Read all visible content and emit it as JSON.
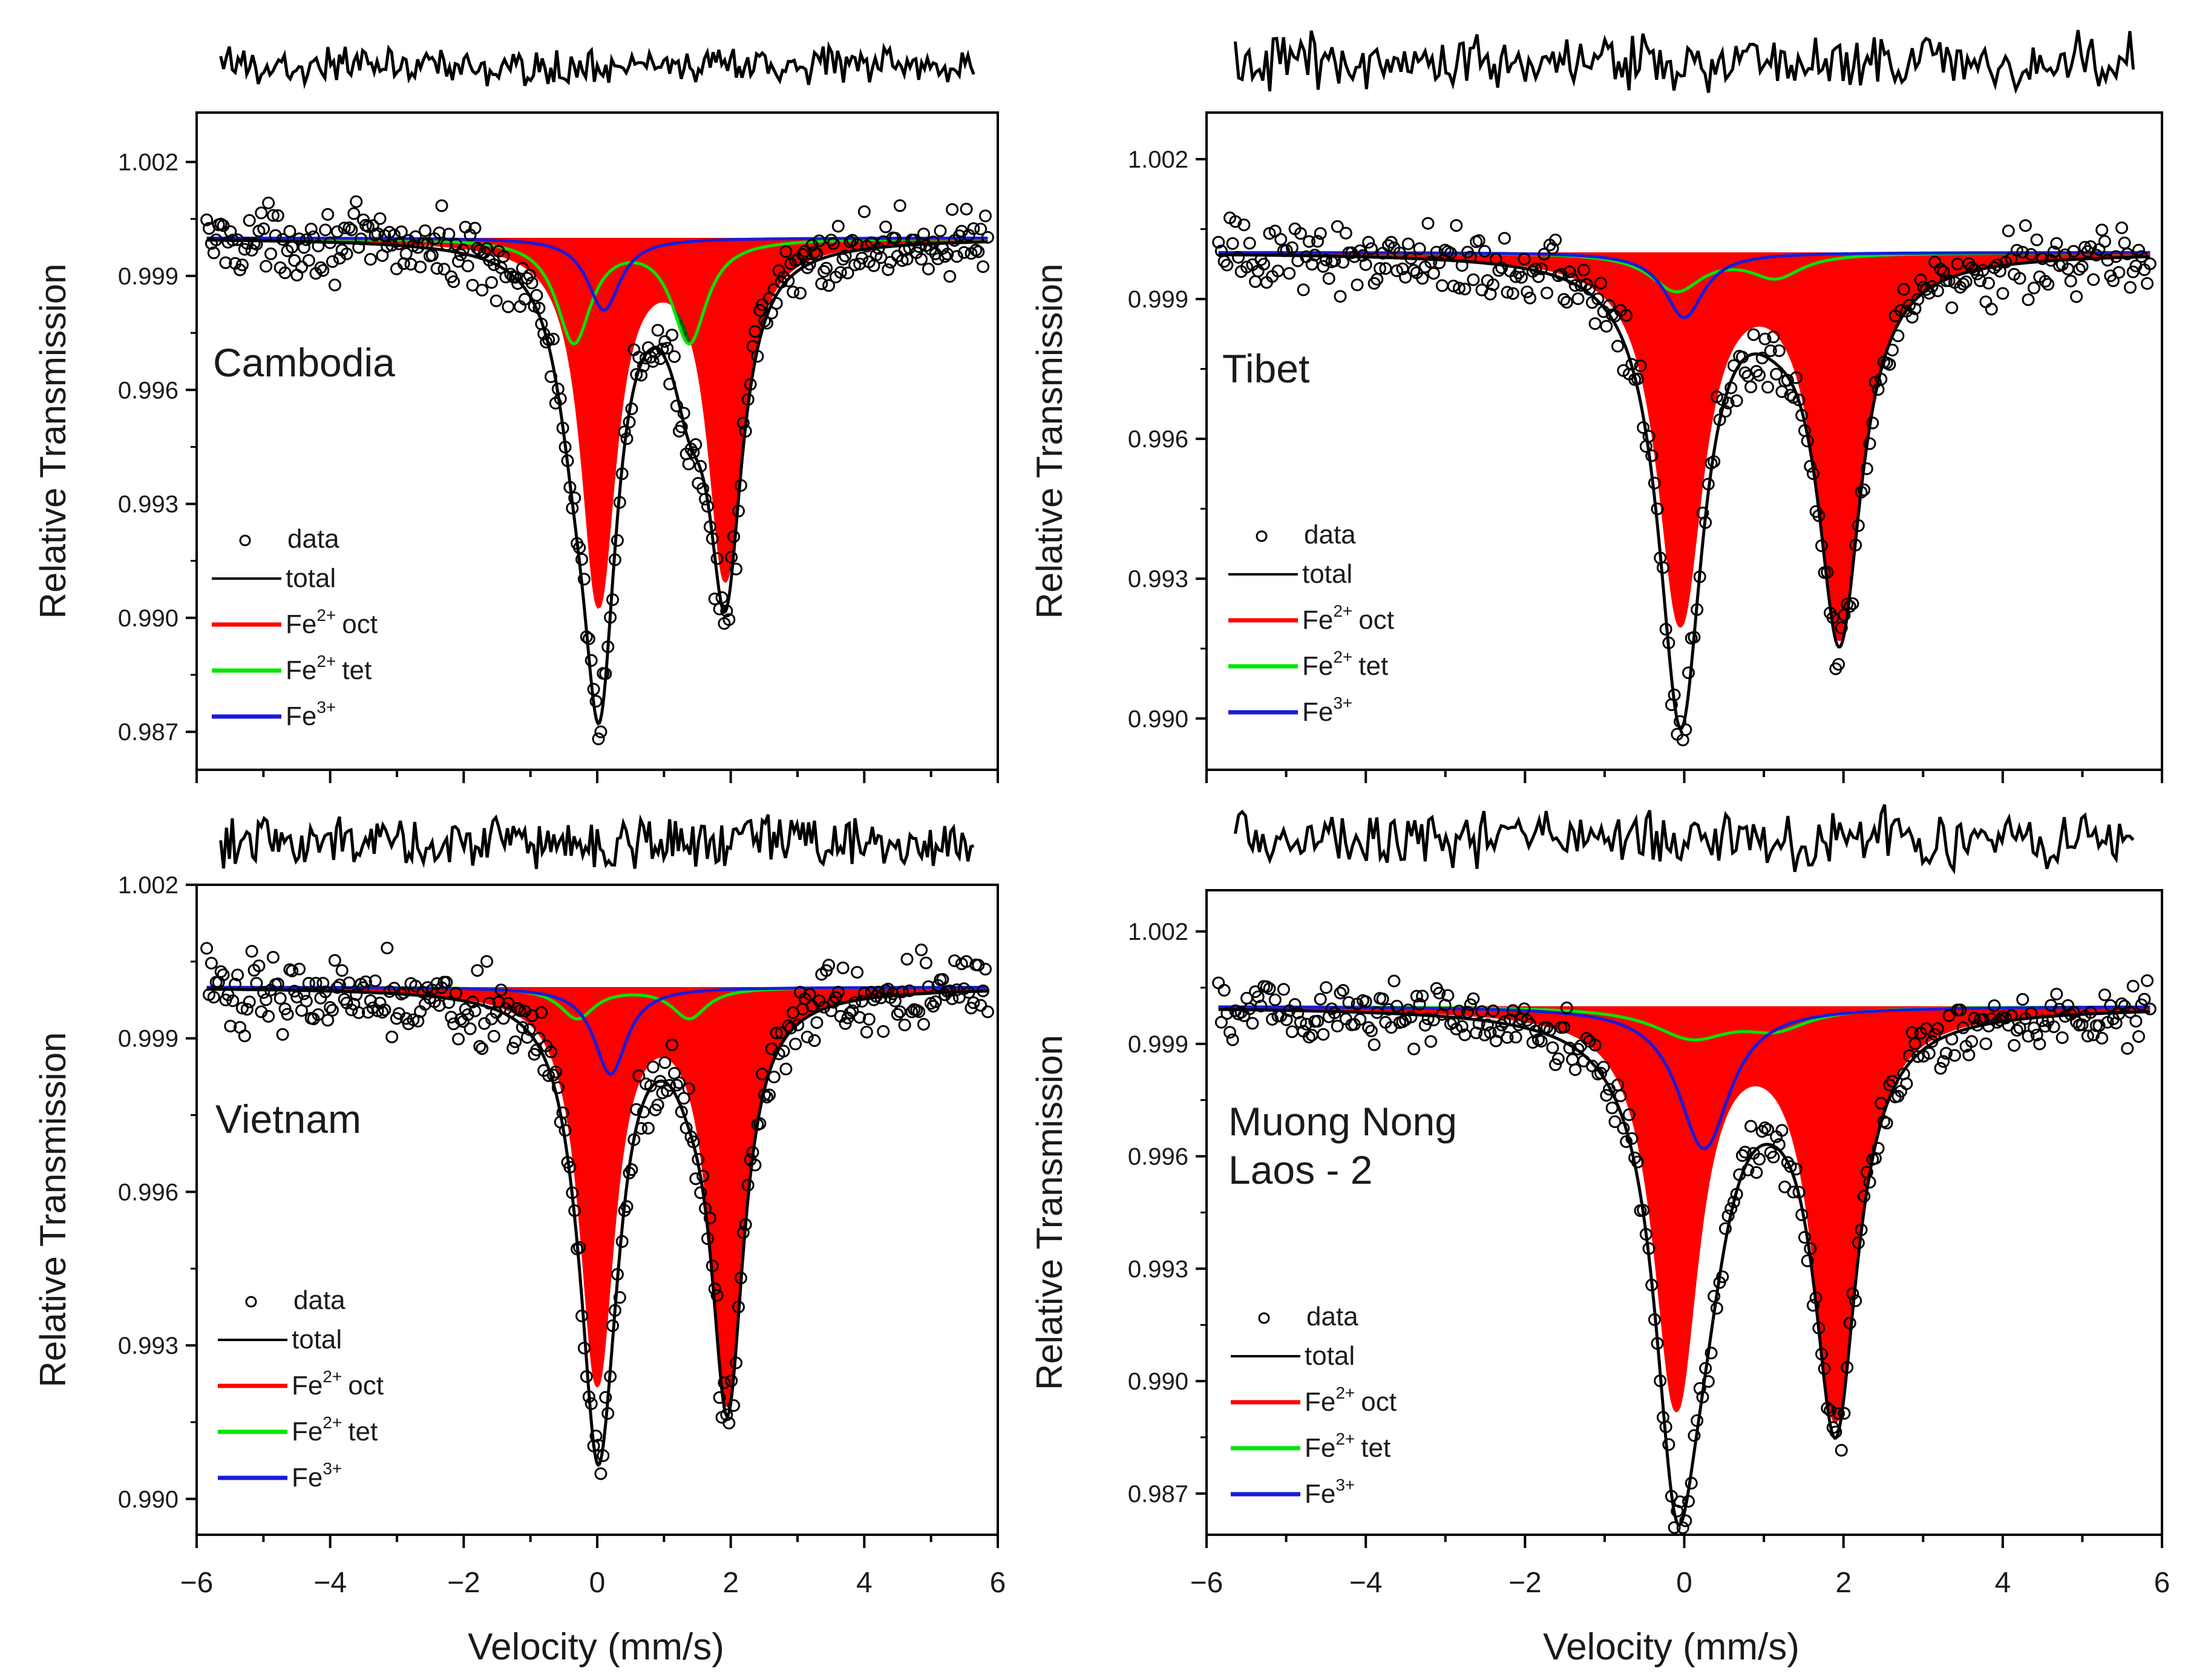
{
  "figure": {
    "xlabel": "Velocity (mm/s)",
    "ylabel": "Relative Transmission"
  },
  "legend": {
    "data": "data",
    "total": "total",
    "fe2_oct": {
      "base": "Fe",
      "sup": "2+",
      "suffix": "oct"
    },
    "fe2_tet": {
      "base": "Fe",
      "sup": "2+",
      "suffix": "tet"
    },
    "fe3": {
      "base": "Fe",
      "sup": "3+",
      "suffix": ""
    }
  },
  "colors": {
    "fe2_oct": "#ff0000",
    "fe2_tet": "#00e600",
    "fe3": "#1a1adb",
    "total": "#000000",
    "data": "#000000",
    "tet_hatch": "#1f5a1f",
    "fe3_hatch_fill": "#3a2a9a",
    "mix_fill": "#5a1a1a"
  },
  "chart_data": [
    {
      "type": "line",
      "title": "Cambodia",
      "xlabel": "Velocity (mm/s)",
      "ylabel": "Relative Transmission",
      "xlim": [
        -6,
        6
      ],
      "ylim": [
        0.986,
        1.0033
      ],
      "xticks": [
        -6,
        -4,
        -2,
        0,
        2,
        4,
        6
      ],
      "yticks": [
        0.987,
        0.99,
        0.993,
        0.996,
        0.999,
        1.002
      ],
      "ytick_labels": [
        "0.987",
        "0.990",
        "0.993",
        "0.996",
        "0.999",
        "1.002"
      ],
      "baseline": 1.0,
      "series": [
        {
          "name": "Fe2+ oct",
          "peaks": [
            {
              "center": 0.02,
              "depth": 0.0095,
              "width": 0.3
            },
            {
              "center": 1.92,
              "depth": 0.0088,
              "width": 0.3
            }
          ]
        },
        {
          "name": "Fe2+ tet",
          "peaks": [
            {
              "center": -0.35,
              "depth": 0.0027,
              "width": 0.32
            },
            {
              "center": 1.38,
              "depth": 0.0027,
              "width": 0.32
            }
          ]
        },
        {
          "name": "Fe3+",
          "peaks": [
            {
              "center": 0.1,
              "depth": 0.0019,
              "width": 0.3
            }
          ]
        }
      ],
      "data_noise": 0.0007
    },
    {
      "type": "line",
      "title": "Tibet",
      "xlabel": "Velocity (mm/s)",
      "ylabel": "Relative Transmission",
      "xlim": [
        -6,
        6
      ],
      "ylim": [
        0.9889,
        1.003
      ],
      "xticks": [
        -6,
        -4,
        -2,
        0,
        2,
        4,
        6
      ],
      "yticks": [
        0.99,
        0.993,
        0.996,
        0.999,
        1.002
      ],
      "ytick_labels": [
        "0.990",
        "0.993",
        "0.996",
        "0.999",
        "1.002"
      ],
      "baseline": 1.0,
      "series": [
        {
          "name": "Fe2+ oct",
          "peaks": [
            {
              "center": -0.05,
              "depth": 0.0078,
              "width": 0.33
            },
            {
              "center": 1.95,
              "depth": 0.0081,
              "width": 0.33
            }
          ]
        },
        {
          "name": "Fe2+ tet",
          "peaks": [
            {
              "center": -0.1,
              "depth": 0.0008,
              "width": 0.4
            },
            {
              "center": 1.15,
              "depth": 0.0005,
              "width": 0.4
            }
          ]
        },
        {
          "name": "Fe3+",
          "peaks": [
            {
              "center": 0.0,
              "depth": 0.0014,
              "width": 0.3
            }
          ]
        }
      ],
      "data_noise": 0.0006
    },
    {
      "type": "line",
      "title": "Vietnam",
      "xlabel": "Velocity (mm/s)",
      "ylabel": "Relative Transmission",
      "xlim": [
        -6,
        6
      ],
      "ylim": [
        0.9893,
        1.002
      ],
      "xticks": [
        -6,
        -4,
        -2,
        0,
        2,
        4,
        6
      ],
      "xtick_labels": [
        "−6",
        "−4",
        "−2",
        "0",
        "2",
        "4",
        "6"
      ],
      "yticks": [
        0.99,
        0.993,
        0.996,
        0.999,
        1.002
      ],
      "ytick_labels": [
        "0.990",
        "0.993",
        "0.996",
        "0.999",
        "1.002"
      ],
      "baseline": 1.0,
      "series": [
        {
          "name": "Fe2+ oct",
          "peaks": [
            {
              "center": 0.0,
              "depth": 0.0076,
              "width": 0.3
            },
            {
              "center": 1.95,
              "depth": 0.008,
              "width": 0.3
            }
          ]
        },
        {
          "name": "Fe2+ tet",
          "peaks": [
            {
              "center": -0.3,
              "depth": 0.0006,
              "width": 0.32
            },
            {
              "center": 1.38,
              "depth": 0.0006,
              "width": 0.32
            }
          ]
        },
        {
          "name": "Fe3+",
          "peaks": [
            {
              "center": 0.2,
              "depth": 0.0017,
              "width": 0.3
            }
          ]
        }
      ],
      "data_noise": 0.0006
    },
    {
      "type": "line",
      "title": "Muong Nong\nLaos - 2",
      "xlabel": "Velocity (mm/s)",
      "ylabel": "Relative Transmission",
      "xlim": [
        -6,
        6
      ],
      "ylim": [
        0.9859,
        1.0031
      ],
      "xticks": [
        -6,
        -4,
        -2,
        0,
        2,
        4,
        6
      ],
      "xtick_labels": [
        "−6",
        "−4",
        "−2",
        "0",
        "2",
        "4",
        "6"
      ],
      "yticks": [
        0.987,
        0.99,
        0.993,
        0.996,
        0.999,
        1.002
      ],
      "ytick_labels": [
        "0.987",
        "0.990",
        "0.993",
        "0.996",
        "0.999",
        "1.002"
      ],
      "baseline": 1.0,
      "series": [
        {
          "name": "Fe2+ oct",
          "peaks": [
            {
              "center": -0.1,
              "depth": 0.0105,
              "width": 0.33
            },
            {
              "center": 1.9,
              "depth": 0.0108,
              "width": 0.33
            }
          ]
        },
        {
          "name": "Fe2+ tet",
          "peaks": [
            {
              "center": 0.1,
              "depth": 0.0008,
              "width": 0.6
            },
            {
              "center": 1.15,
              "depth": 0.0005,
              "width": 0.5
            }
          ]
        },
        {
          "name": "Fe3+",
          "peaks": [
            {
              "center": 0.25,
              "depth": 0.0038,
              "width": 0.4
            }
          ]
        }
      ],
      "data_noise": 0.0007
    }
  ]
}
